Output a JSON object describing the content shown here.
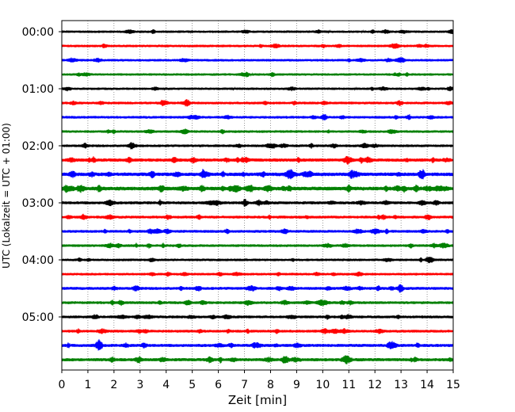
{
  "chart_data": {
    "type": "line",
    "title": "",
    "xlabel": "Zeit  [min]",
    "ylabel": "UTC (Lokalzeit = UTC + 01:00)",
    "xlim": [
      0,
      15
    ],
    "x_ticks": [
      "0",
      "1",
      "2",
      "3",
      "4",
      "5",
      "6",
      "7",
      "8",
      "9",
      "10",
      "11",
      "12",
      "13",
      "14",
      "15"
    ],
    "y_ticks": [
      "00:00",
      "01:00",
      "02:00",
      "03:00",
      "04:00",
      "05:00"
    ],
    "grid": "vertical dotted at each minute",
    "minutes_per_trace": 15,
    "trace_colors_cycle": [
      "#000000",
      "#ff0000",
      "#0000ff",
      "#008000"
    ],
    "traces": [
      {
        "start": "00:00",
        "color": "#000000",
        "activity": 0.25
      },
      {
        "start": "00:15",
        "color": "#ff0000",
        "activity": 0.3
      },
      {
        "start": "00:30",
        "color": "#0000ff",
        "activity": 0.28
      },
      {
        "start": "00:45",
        "color": "#008000",
        "activity": 0.25
      },
      {
        "start": "01:00",
        "color": "#000000",
        "activity": 0.25
      },
      {
        "start": "01:15",
        "color": "#ff0000",
        "activity": 0.35
      },
      {
        "start": "01:30",
        "color": "#0000ff",
        "activity": 0.35
      },
      {
        "start": "01:45",
        "color": "#008000",
        "activity": 0.3
      },
      {
        "start": "02:00",
        "color": "#000000",
        "activity": 0.35
      },
      {
        "start": "02:15",
        "color": "#ff0000",
        "activity": 0.6
      },
      {
        "start": "02:30",
        "color": "#0000ff",
        "activity": 0.7
      },
      {
        "start": "02:45",
        "color": "#008000",
        "activity": 0.8
      },
      {
        "start": "03:00",
        "color": "#000000",
        "activity": 0.45
      },
      {
        "start": "03:15",
        "color": "#ff0000",
        "activity": 0.4
      },
      {
        "start": "03:30",
        "color": "#0000ff",
        "activity": 0.4
      },
      {
        "start": "03:45",
        "color": "#008000",
        "activity": 0.35
      },
      {
        "start": "04:00",
        "color": "#000000",
        "activity": 0.3
      },
      {
        "start": "04:15",
        "color": "#ff0000",
        "activity": 0.3
      },
      {
        "start": "04:30",
        "color": "#0000ff",
        "activity": 0.45
      },
      {
        "start": "04:45",
        "color": "#008000",
        "activity": 0.4
      },
      {
        "start": "05:00",
        "color": "#000000",
        "activity": 0.4
      },
      {
        "start": "05:15",
        "color": "#ff0000",
        "activity": 0.4
      },
      {
        "start": "05:30",
        "color": "#0000ff",
        "activity": 0.5
      },
      {
        "start": "05:45",
        "color": "#008000",
        "activity": 0.55
      }
    ]
  }
}
